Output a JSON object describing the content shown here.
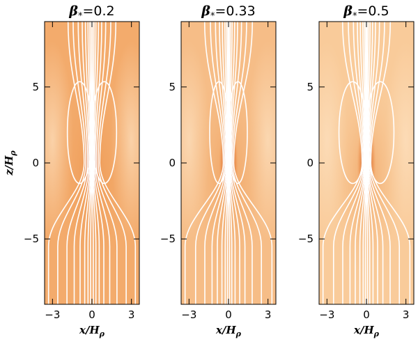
{
  "chart_data": [
    {
      "type": "heatmap",
      "title": "β*=0.2",
      "title_symbol": "β",
      "title_subscript": "*",
      "title_value": "=0.2",
      "xlabel": "x/Hρ",
      "xlabel_parts": {
        "num": "x/H",
        "sub": "ρ"
      },
      "ylabel": "z/Hρ",
      "ylabel_parts": {
        "num": "z/H",
        "sub": "ρ"
      },
      "xlim": [
        -3.6,
        3.6
      ],
      "ylim": [
        -9.3,
        9.3
      ],
      "xticks": [
        -3,
        0,
        3
      ],
      "yticks": [
        -5,
        0,
        5
      ],
      "xtick_labels": [
        "−3",
        "0",
        "3"
      ],
      "ytick_labels": [
        "−5",
        "0",
        "5"
      ],
      "background_color": "#f3ab6c",
      "core_color": "#6a0c06",
      "field_line_color": "#ffffff",
      "core_intensity": 1.0,
      "field_lines_x_far": [
        -3.3,
        -2.6,
        -1.9,
        -1.35,
        -0.9,
        -0.55,
        -0.3,
        -0.1,
        0.1,
        0.3,
        0.55,
        0.9,
        1.35,
        1.9,
        2.6,
        3.3
      ],
      "pinch": 0.18,
      "closed_loop_halfwidth": 1.7
    },
    {
      "type": "heatmap",
      "title": "β*=0.33",
      "title_symbol": "β",
      "title_subscript": "*",
      "title_value": "=0.33",
      "xlabel": "x/Hρ",
      "xlabel_parts": {
        "num": "x/H",
        "sub": "ρ"
      },
      "xlim": [
        -3.6,
        3.6
      ],
      "ylim": [
        -9.3,
        9.3
      ],
      "xticks": [
        -3,
        0,
        3
      ],
      "yticks": [
        -5,
        0,
        5
      ],
      "xtick_labels": [
        "−3",
        "0",
        "3"
      ],
      "ytick_labels": [
        "−5",
        "0",
        "5"
      ],
      "background_color": "#f6bd87",
      "core_color": "#8a1a0a",
      "field_line_color": "#ffffff",
      "core_intensity": 0.75,
      "field_lines_x_far": [
        -3.3,
        -2.5,
        -1.8,
        -1.25,
        -0.85,
        -0.5,
        -0.25,
        -0.08,
        0.08,
        0.25,
        0.5,
        0.85,
        1.25,
        1.8,
        2.5,
        3.3
      ],
      "pinch": 0.12,
      "closed_loop_halfwidth": 1.3
    },
    {
      "type": "heatmap",
      "title": "β*=0.5",
      "title_symbol": "β",
      "title_subscript": "*",
      "title_value": "=0.5",
      "xlabel": "x/Hρ",
      "xlabel_parts": {
        "num": "x/H",
        "sub": "ρ"
      },
      "xlim": [
        -3.6,
        3.6
      ],
      "ylim": [
        -9.3,
        9.3
      ],
      "xticks": [
        -3,
        0,
        3
      ],
      "yticks": [
        -5,
        0,
        5
      ],
      "xtick_labels": [
        "−3",
        "0",
        "3"
      ],
      "ytick_labels": [
        "−5",
        "0",
        "5"
      ],
      "background_color": "#f9cb9a",
      "core_color": "#9a2a10",
      "field_line_color": "#ffffff",
      "core_intensity": 0.6,
      "field_lines_x_far": [
        -3.3,
        -2.5,
        -1.8,
        -1.25,
        -0.85,
        -0.5,
        -0.25,
        -0.08,
        0.08,
        0.25,
        0.5,
        0.85,
        1.25,
        1.8,
        2.5,
        3.3
      ],
      "pinch": 0.1,
      "closed_loop_halfwidth": 1.9
    }
  ]
}
